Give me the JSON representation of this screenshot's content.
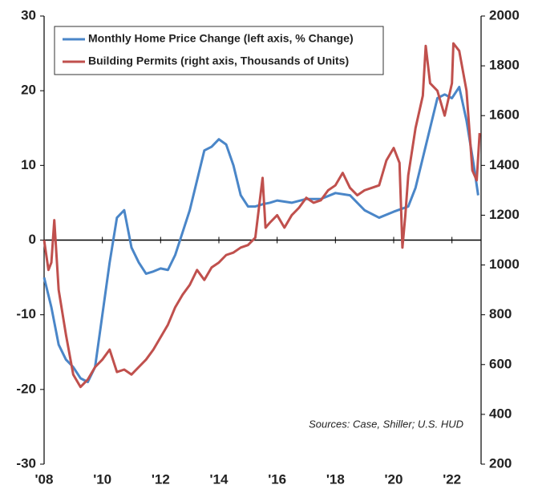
{
  "chart_data": {
    "type": "line",
    "annotation": "Sources: Case, Shiller; U.S. HUD",
    "legend": "upper left",
    "xlim": [
      2008,
      2023
    ],
    "xticks": [
      {
        "value": 2008,
        "label": "'08"
      },
      {
        "value": 2010,
        "label": "'10"
      },
      {
        "value": 2012,
        "label": "'12"
      },
      {
        "value": 2014,
        "label": "'14"
      },
      {
        "value": 2016,
        "label": "'16"
      },
      {
        "value": 2018,
        "label": "'18"
      },
      {
        "value": 2020,
        "label": "'20"
      },
      {
        "value": 2022,
        "label": "'22"
      }
    ],
    "ylim": [
      -30,
      30
    ],
    "yticks": [
      -30,
      -20,
      -10,
      0,
      10,
      20,
      30
    ],
    "y2lim": [
      200,
      2000
    ],
    "y2ticks": [
      200,
      400,
      600,
      800,
      1000,
      1200,
      1400,
      1600,
      1800,
      2000
    ],
    "series": [
      {
        "name": "Monthly Home Price Change (left axis, % Change)",
        "color": "#4a86c8",
        "x": [
          2008.0,
          2008.25,
          2008.5,
          2008.75,
          2009.0,
          2009.25,
          2009.5,
          2009.75,
          2010.0,
          2010.25,
          2010.5,
          2010.75,
          2011.0,
          2011.25,
          2011.5,
          2011.75,
          2012.0,
          2012.25,
          2012.5,
          2012.75,
          2013.0,
          2013.25,
          2013.5,
          2013.75,
          2014.0,
          2014.25,
          2014.5,
          2014.75,
          2015.0,
          2015.25,
          2015.5,
          2015.75,
          2016.0,
          2016.5,
          2017.0,
          2017.5,
          2018.0,
          2018.5,
          2019.0,
          2019.5,
          2020.0,
          2020.5,
          2020.75,
          2021.0,
          2021.25,
          2021.5,
          2021.75,
          2022.0,
          2022.25,
          2022.5,
          2022.75,
          2022.9
        ],
        "values": [
          -5,
          -9,
          -14,
          -16,
          -17,
          -18.5,
          -19,
          -17,
          -10,
          -3,
          3,
          4,
          -1,
          -3,
          -4.5,
          -4.2,
          -3.8,
          -4,
          -2,
          1,
          4,
          8,
          12,
          12.5,
          13.5,
          12.8,
          10,
          6,
          4.5,
          4.5,
          4.8,
          5,
          5.3,
          5,
          5.5,
          5.5,
          6.3,
          6,
          4,
          3,
          3.8,
          4.5,
          7,
          11,
          15,
          19,
          19.5,
          19,
          20.5,
          16,
          10,
          6
        ]
      },
      {
        "name": "Building Permits (right axis, Thousands of Units)",
        "color": "#c0504d",
        "axis": "y2",
        "x": [
          2008.0,
          2008.15,
          2008.25,
          2008.35,
          2008.5,
          2008.75,
          2009.0,
          2009.25,
          2009.5,
          2009.75,
          2010.0,
          2010.25,
          2010.5,
          2010.75,
          2011.0,
          2011.25,
          2011.5,
          2011.75,
          2012.0,
          2012.25,
          2012.5,
          2012.75,
          2013.0,
          2013.25,
          2013.5,
          2013.75,
          2014.0,
          2014.25,
          2014.5,
          2014.75,
          2015.0,
          2015.25,
          2015.5,
          2015.6,
          2015.75,
          2016.0,
          2016.25,
          2016.5,
          2016.75,
          2017.0,
          2017.25,
          2017.5,
          2017.75,
          2018.0,
          2018.25,
          2018.5,
          2018.75,
          2019.0,
          2019.25,
          2019.5,
          2019.75,
          2020.0,
          2020.2,
          2020.3,
          2020.4,
          2020.5,
          2020.75,
          2021.0,
          2021.1,
          2021.25,
          2021.5,
          2021.75,
          2022.0,
          2022.05,
          2022.25,
          2022.5,
          2022.7,
          2022.85,
          2022.95
        ],
        "values": [
          1100,
          980,
          1010,
          1180,
          900,
          720,
          560,
          510,
          540,
          590,
          620,
          660,
          570,
          580,
          560,
          590,
          620,
          660,
          710,
          760,
          830,
          880,
          920,
          980,
          940,
          990,
          1010,
          1040,
          1050,
          1070,
          1080,
          1110,
          1350,
          1150,
          1170,
          1200,
          1150,
          1200,
          1230,
          1270,
          1250,
          1260,
          1300,
          1320,
          1370,
          1310,
          1280,
          1300,
          1310,
          1320,
          1420,
          1470,
          1410,
          1070,
          1200,
          1360,
          1550,
          1680,
          1880,
          1730,
          1700,
          1600,
          1730,
          1890,
          1860,
          1700,
          1380,
          1340,
          1530
        ]
      }
    ]
  }
}
